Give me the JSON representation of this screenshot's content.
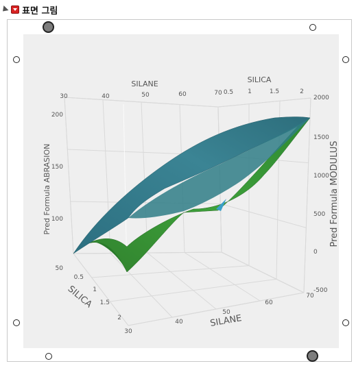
{
  "header": {
    "title": "표면 그림"
  },
  "chart_data": {
    "type": "surface",
    "x_axis": {
      "label": "SILANE",
      "range": [
        30,
        70
      ],
      "ticks": [
        30,
        40,
        50,
        60,
        70
      ]
    },
    "y_axis": {
      "label": "SILICA",
      "range": [
        0.5,
        2
      ],
      "ticks": [
        0.5,
        1,
        1.5,
        2
      ]
    },
    "z_left_axis": {
      "label": "Pred Formula ABRASION",
      "range": [
        50,
        200
      ],
      "ticks": [
        50,
        100,
        150,
        200
      ]
    },
    "z_right_axis": {
      "label": "Pred Formula MODULUS",
      "range": [
        -500,
        2000
      ],
      "ticks": [
        -500,
        0,
        500,
        1000,
        1500,
        2000
      ]
    },
    "top_axes": {
      "silane": {
        "label": "SILANE",
        "ticks": [
          30,
          40,
          50,
          60,
          70
        ]
      },
      "silica": {
        "label": "SILICA",
        "ticks": [
          0.5,
          1,
          1.5,
          2
        ]
      }
    },
    "series": [
      {
        "name": "Pred Formula ABRASION",
        "color": "#3c8a94"
      },
      {
        "name": "Pred Formula MODULUS",
        "color": "#3a9a35"
      }
    ]
  }
}
